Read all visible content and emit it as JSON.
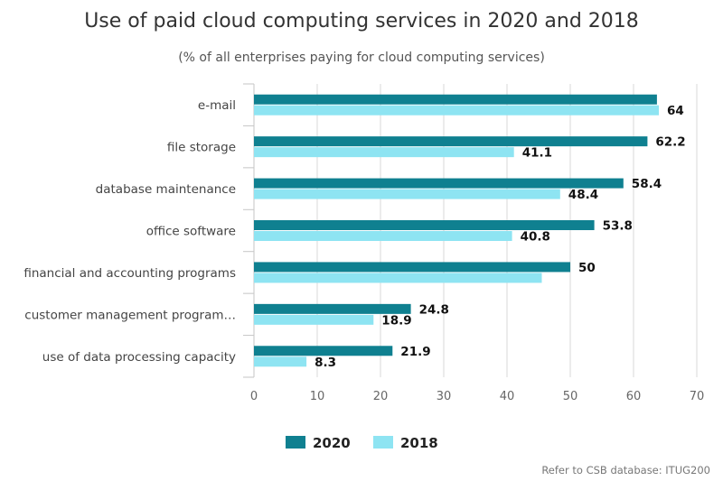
{
  "chart_data": {
    "type": "bar",
    "orientation": "horizontal",
    "title": "Use of paid cloud computing services in 2020 and 2018",
    "subtitle": "(% of all enterprises paying for cloud computing services)",
    "categories": [
      "e-mail",
      "file storage",
      "database maintenance",
      "office software",
      "financial and accounting programs",
      "customer management program…",
      "use of data processing capacity"
    ],
    "series": [
      {
        "name": "2020",
        "color": "#0f8090",
        "values": [
          63.7,
          62.2,
          58.4,
          53.8,
          50,
          24.8,
          21.9
        ],
        "labels": [
          "",
          "62.2",
          "58.4",
          "53.8",
          "50",
          "24.8",
          "21.9"
        ]
      },
      {
        "name": "2018",
        "color": "#8ee4f2",
        "values": [
          64,
          41.1,
          48.4,
          40.8,
          45.5,
          18.9,
          8.3
        ],
        "labels": [
          "64",
          "41.1",
          "48.4",
          "40.8",
          "",
          "18.9",
          "8.3"
        ]
      }
    ],
    "xlim": [
      0,
      70
    ],
    "xticks": [
      "0",
      "10",
      "20",
      "30",
      "40",
      "50",
      "60",
      "70"
    ],
    "grid": true,
    "legend_position": "bottom"
  },
  "source": "Refer to CSB database: ITUG200"
}
